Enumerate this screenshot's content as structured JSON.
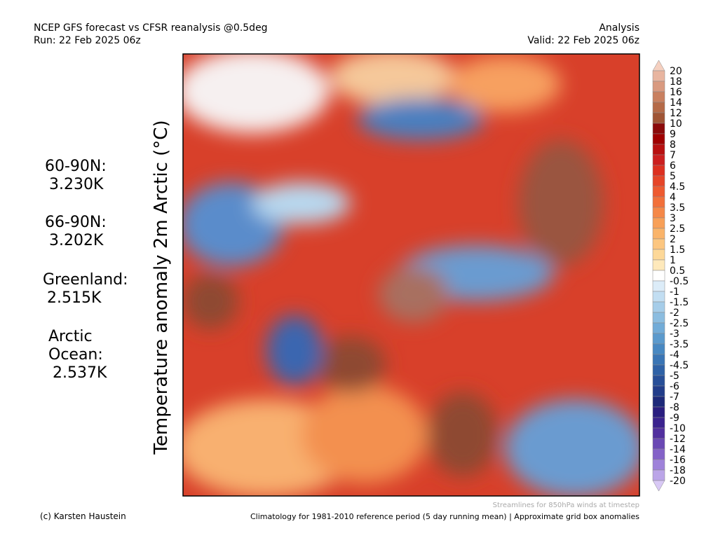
{
  "header": {
    "title": "NCEP GFS forecast vs CFSR reanalysis @0.5deg",
    "run": "Run: 22 Feb 2025 06z",
    "analysis": "Analysis",
    "valid": "Valid: 22 Feb 2025 06z"
  },
  "map": {
    "axis_label": "Temperature anomaly 2m Arctic (°C)",
    "streamlines_note": "Streamlines for 850hPa winds at timestep"
  },
  "stats": [
    {
      "label": [
        "60-90N:"
      ],
      "value": "3.230K"
    },
    {
      "label": [
        "66-90N:"
      ],
      "value": "3.202K"
    },
    {
      "label": [
        "Greenland:"
      ],
      "value": "2.515K"
    },
    {
      "label": [
        "Arctic",
        "Ocean:"
      ],
      "value": "2.537K"
    }
  ],
  "colorbar": {
    "levels": [
      20,
      18,
      16,
      14,
      12,
      10,
      9,
      8,
      7,
      6,
      5,
      4.5,
      4,
      3.5,
      3,
      2.5,
      2,
      1.5,
      1,
      0.5,
      -0.5,
      -1,
      -1.5,
      -2,
      -2.5,
      -3,
      -3.5,
      -4,
      -4.5,
      -5,
      -6,
      -7,
      -8,
      -9,
      -10,
      -12,
      -14,
      -16,
      -18,
      -20
    ],
    "colors": [
      "#f5d0c0",
      "#e8b5a0",
      "#d99a80",
      "#c98060",
      "#b56a48",
      "#a05535",
      "#8b0a0a",
      "#a00000",
      "#b81010",
      "#cc1f1f",
      "#dd3020",
      "#e64528",
      "#ee5a30",
      "#f2703a",
      "#f58848",
      "#f8a058",
      "#fab46a",
      "#fcc680",
      "#fdd898",
      "#fee9bb",
      "#ffffff",
      "#dcecf8",
      "#c2def2",
      "#a6cde9",
      "#8cbde0",
      "#72acd8",
      "#5b9acd",
      "#4888c2",
      "#3a75b5",
      "#2f62a7",
      "#284f98",
      "#223d8a",
      "#1e2a7a",
      "#2a1e80",
      "#3b238f",
      "#52309f",
      "#6a48b4",
      "#8462c8",
      "#9f82da",
      "#bba5e8",
      "#d8c8f5"
    ]
  },
  "footer": {
    "credit": "(c) Karsten Haustein",
    "note": "Climatology for 1981-2010 reference period (5 day running mean) | Approximate grid box anomalies"
  }
}
